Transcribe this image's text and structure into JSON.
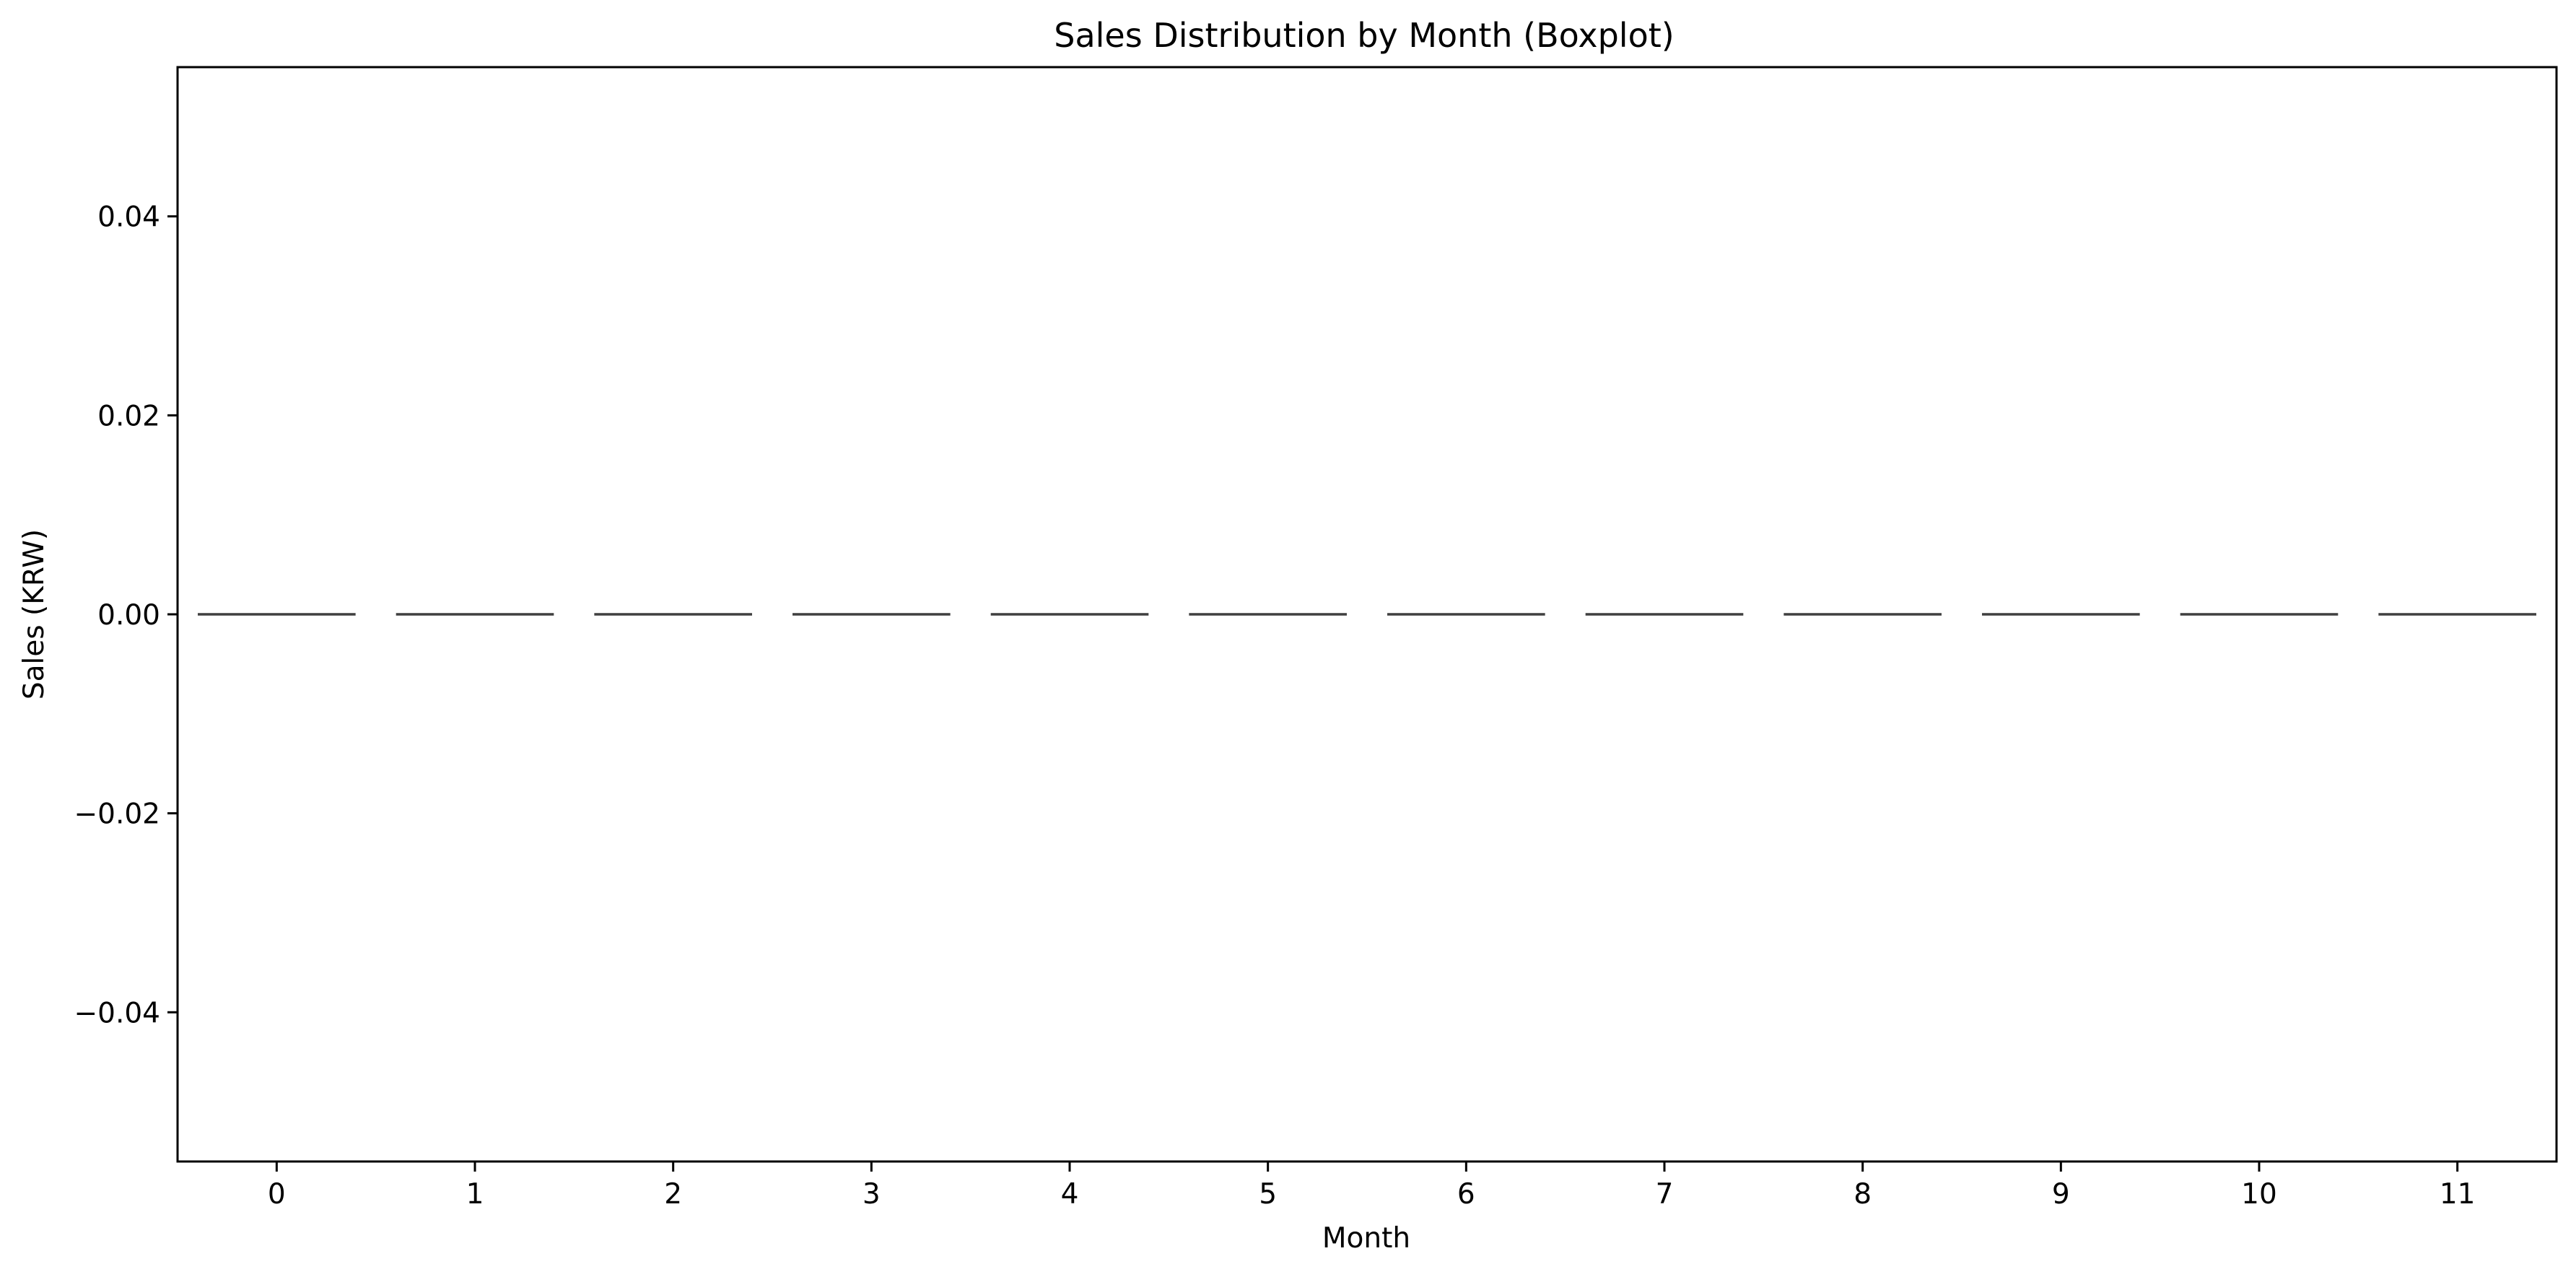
{
  "chart_data": {
    "type": "box",
    "title": "Sales Distribution by Month (Boxplot)",
    "xlabel": "Month",
    "ylabel": "Sales (KRW)",
    "categories": [
      "0",
      "1",
      "2",
      "3",
      "4",
      "5",
      "6",
      "7",
      "8",
      "9",
      "10",
      "11"
    ],
    "series": [
      {
        "values": [
          0,
          0,
          0,
          0,
          0,
          0,
          0,
          0,
          0,
          0,
          0,
          0
        ]
      }
    ],
    "ylim": [
      -0.055,
      0.055
    ],
    "yticks": [
      -0.04,
      -0.02,
      0.0,
      0.02,
      0.04
    ],
    "ytick_labels": [
      "−0.04",
      "−0.02",
      "0.00",
      "0.02",
      "0.04"
    ],
    "grid": false,
    "colors": {
      "box_line": "#3f3f3f",
      "axes": "#000000",
      "background": "#ffffff"
    }
  }
}
